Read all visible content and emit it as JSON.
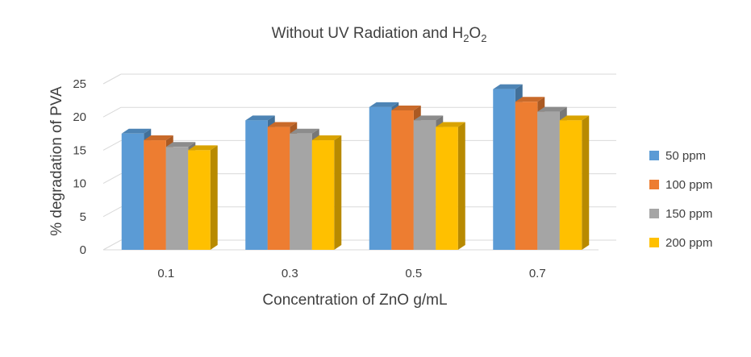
{
  "chart_data": {
    "type": "bar",
    "title": {
      "main": "Without UV Radiation and H",
      "sub1": "2",
      "mid": "O",
      "sub2": "2"
    },
    "xlabel": "Concentration of ZnO g/mL",
    "ylabel": "% degradation of PVA",
    "categories": [
      "0.1",
      "0.3",
      "0.5",
      "0.7"
    ],
    "ylim": [
      0,
      25
    ],
    "yticks": [
      "0",
      "5",
      "10",
      "15",
      "20",
      "25"
    ],
    "grid": true,
    "legend_position": "right",
    "series": [
      {
        "name": "50 ppm",
        "values": [
          17.5,
          19.5,
          21.5,
          24.2
        ],
        "color": "#5B9BD5"
      },
      {
        "name": "100 ppm",
        "values": [
          16.5,
          18.5,
          21.0,
          22.3
        ],
        "color": "#ED7D31"
      },
      {
        "name": "150 ppm",
        "values": [
          15.5,
          17.5,
          19.5,
          20.8
        ],
        "color": "#A5A5A5"
      },
      {
        "name": "200 ppm",
        "values": [
          15.0,
          16.5,
          18.5,
          19.5
        ],
        "color": "#FFC000"
      }
    ]
  }
}
